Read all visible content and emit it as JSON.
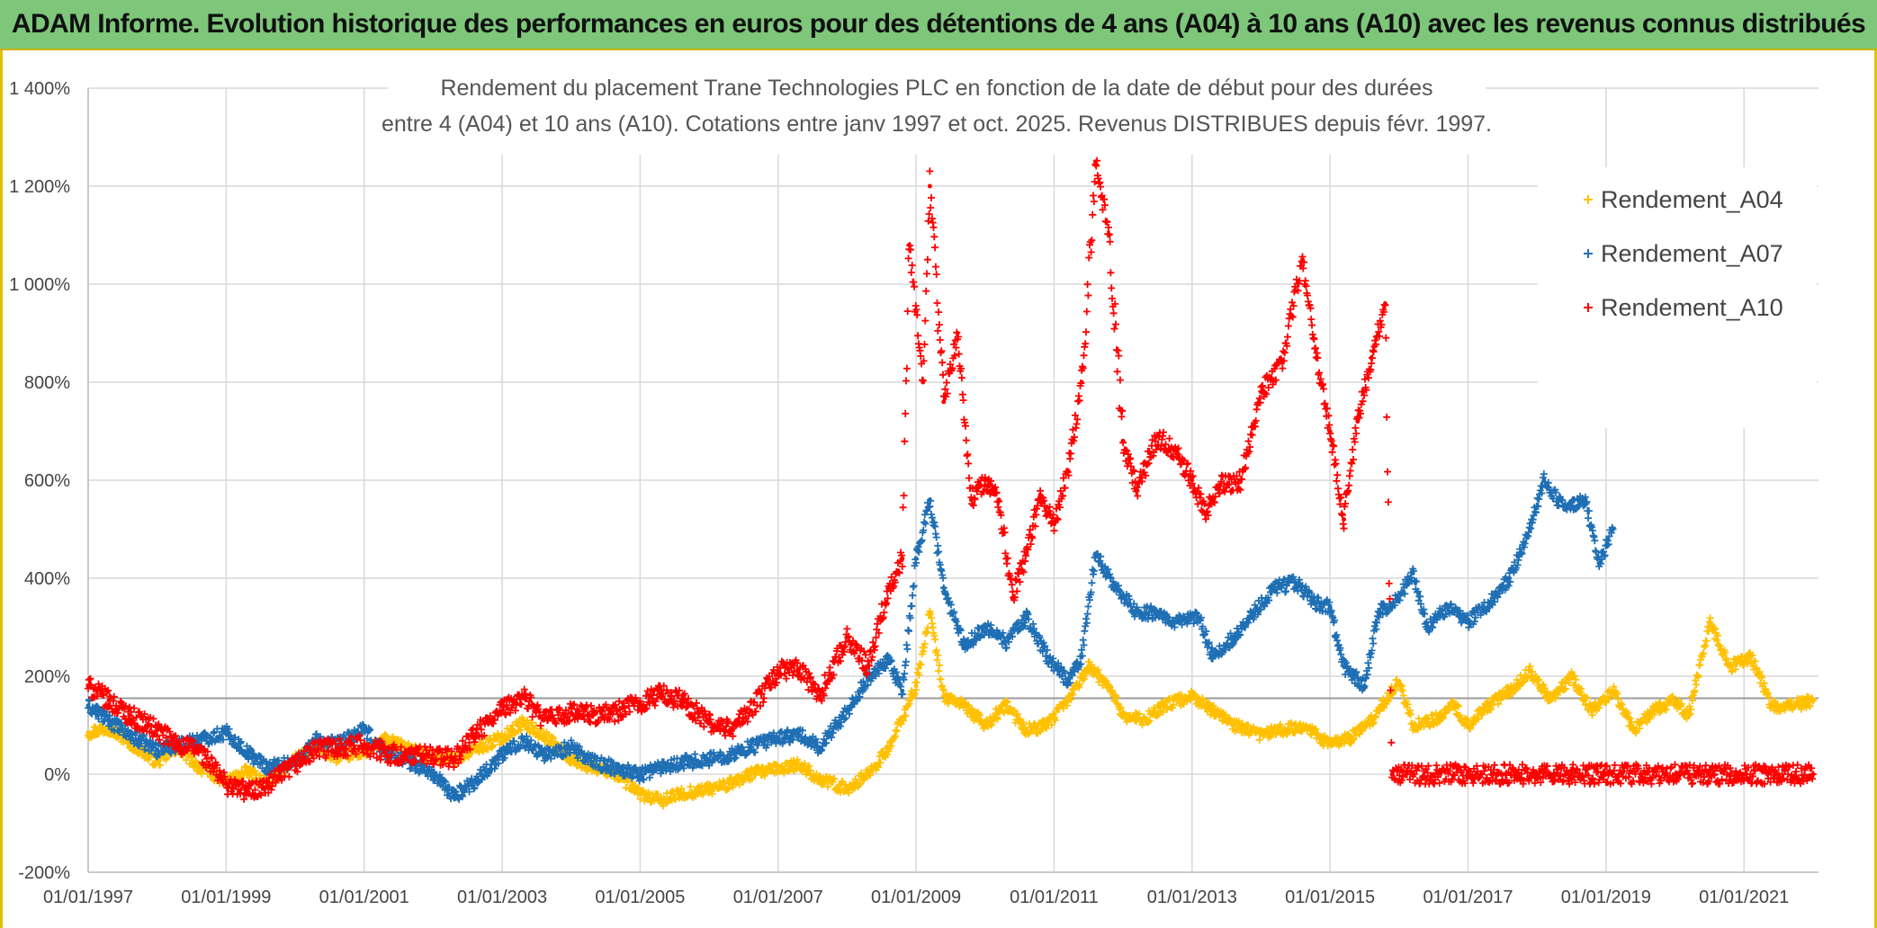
{
  "banner": {
    "title": "ADAM Informe. Evolution historique des performances en euros pour des détentions de 4 ans (A04) à 10 ans (A10) avec les revenus connus distribués"
  },
  "chart_data": {
    "type": "scatter",
    "title_line1": "Rendement du placement Trane Technologies PLC en fonction de la date de début pour des durées",
    "title_line2": "entre 4 (A04) et 10 ans (A10). Cotations entre janv 1997 et oct. 2025. Revenus DISTRIBUES depuis févr. 1997.",
    "xlabel": "",
    "ylabel": "",
    "x_range": [
      "1997-01-01",
      "2022-01-31"
    ],
    "ylim": [
      -200,
      1400
    ],
    "y_ticks": [
      -200,
      0,
      200,
      400,
      600,
      800,
      1000,
      1200,
      1400
    ],
    "y_tick_labels": [
      "-200%",
      "0%",
      "200%",
      "400%",
      "600%",
      "800%",
      "1 000%",
      "1 200%",
      "1 400%"
    ],
    "x_tick_labels": [
      "01/01/1997",
      "01/01/1999",
      "01/01/2001",
      "01/01/2003",
      "01/01/2005",
      "01/01/2007",
      "01/01/2009",
      "01/01/2011",
      "01/01/2013",
      "01/01/2015",
      "01/01/2017",
      "01/01/2019",
      "01/01/2021"
    ],
    "x_tick_years": [
      1997,
      1999,
      2001,
      2003,
      2005,
      2007,
      2009,
      2011,
      2013,
      2015,
      2017,
      2019,
      2021
    ],
    "reference_line_y": 155,
    "grid": true,
    "legend_position": "top-right",
    "series": [
      {
        "name": "Rendement_A04",
        "color": "#ffc000",
        "points": [
          [
            1997.0,
            85
          ],
          [
            1997.3,
            95
          ],
          [
            1997.6,
            65
          ],
          [
            1998.0,
            25
          ],
          [
            1998.3,
            55
          ],
          [
            1998.6,
            15
          ],
          [
            1999.0,
            -15
          ],
          [
            1999.3,
            5
          ],
          [
            1999.6,
            -20
          ],
          [
            2000.0,
            30
          ],
          [
            2000.3,
            55
          ],
          [
            2000.6,
            35
          ],
          [
            2001.0,
            45
          ],
          [
            2001.3,
            70
          ],
          [
            2001.6,
            55
          ],
          [
            2002.0,
            35
          ],
          [
            2002.3,
            30
          ],
          [
            2002.6,
            50
          ],
          [
            2003.0,
            75
          ],
          [
            2003.3,
            105
          ],
          [
            2003.6,
            80
          ],
          [
            2004.0,
            30
          ],
          [
            2004.3,
            15
          ],
          [
            2004.6,
            5
          ],
          [
            2005.0,
            -40
          ],
          [
            2005.3,
            -55
          ],
          [
            2005.6,
            -40
          ],
          [
            2006.0,
            -30
          ],
          [
            2006.3,
            -20
          ],
          [
            2006.6,
            0
          ],
          [
            2007.0,
            10
          ],
          [
            2007.3,
            20
          ],
          [
            2007.6,
            -10
          ],
          [
            2008.0,
            -30
          ],
          [
            2008.3,
            0
          ],
          [
            2008.6,
            50
          ],
          [
            2009.0,
            180
          ],
          [
            2009.2,
            330
          ],
          [
            2009.4,
            160
          ],
          [
            2009.7,
            140
          ],
          [
            2010.0,
            100
          ],
          [
            2010.3,
            140
          ],
          [
            2010.6,
            90
          ],
          [
            2010.9,
            100
          ],
          [
            2011.2,
            150
          ],
          [
            2011.5,
            220
          ],
          [
            2011.8,
            180
          ],
          [
            2012.0,
            120
          ],
          [
            2012.3,
            110
          ],
          [
            2012.6,
            140
          ],
          [
            2013.0,
            160
          ],
          [
            2013.3,
            130
          ],
          [
            2013.6,
            100
          ],
          [
            2014.0,
            80
          ],
          [
            2014.3,
            90
          ],
          [
            2014.6,
            100
          ],
          [
            2015.0,
            60
          ],
          [
            2015.3,
            75
          ],
          [
            2015.6,
            110
          ],
          [
            2016.0,
            190
          ],
          [
            2016.2,
            100
          ],
          [
            2016.5,
            110
          ],
          [
            2016.8,
            140
          ],
          [
            2017.0,
            100
          ],
          [
            2017.3,
            140
          ],
          [
            2017.6,
            170
          ],
          [
            2017.9,
            210
          ],
          [
            2018.2,
            150
          ],
          [
            2018.5,
            200
          ],
          [
            2018.8,
            130
          ],
          [
            2019.1,
            170
          ],
          [
            2019.4,
            90
          ],
          [
            2019.7,
            130
          ],
          [
            2020.0,
            150
          ],
          [
            2020.2,
            120
          ],
          [
            2020.5,
            310
          ],
          [
            2020.8,
            220
          ],
          [
            2021.1,
            240
          ],
          [
            2021.4,
            140
          ],
          [
            2021.7,
            140
          ],
          [
            2022.0,
            150
          ]
        ]
      },
      {
        "name": "Rendement_A07",
        "color": "#1f6fb5",
        "points": [
          [
            1997.0,
            140
          ],
          [
            1997.3,
            110
          ],
          [
            1997.6,
            80
          ],
          [
            1998.0,
            50
          ],
          [
            1998.3,
            60
          ],
          [
            1998.6,
            70
          ],
          [
            1999.0,
            85
          ],
          [
            1999.3,
            45
          ],
          [
            1999.6,
            15
          ],
          [
            2000.0,
            25
          ],
          [
            2000.3,
            70
          ],
          [
            2000.6,
            60
          ],
          [
            2001.0,
            90
          ],
          [
            2001.3,
            45
          ],
          [
            2001.6,
            30
          ],
          [
            2002.0,
            0
          ],
          [
            2002.3,
            -45
          ],
          [
            2002.6,
            -15
          ],
          [
            2003.0,
            40
          ],
          [
            2003.3,
            70
          ],
          [
            2003.6,
            40
          ],
          [
            2004.0,
            55
          ],
          [
            2004.3,
            25
          ],
          [
            2004.6,
            15
          ],
          [
            2005.0,
            0
          ],
          [
            2005.3,
            15
          ],
          [
            2005.6,
            25
          ],
          [
            2006.0,
            30
          ],
          [
            2006.3,
            40
          ],
          [
            2006.6,
            55
          ],
          [
            2007.0,
            75
          ],
          [
            2007.3,
            80
          ],
          [
            2007.6,
            55
          ],
          [
            2008.0,
            130
          ],
          [
            2008.3,
            195
          ],
          [
            2008.6,
            230
          ],
          [
            2008.8,
            170
          ],
          [
            2009.0,
            440
          ],
          [
            2009.2,
            560
          ],
          [
            2009.4,
            380
          ],
          [
            2009.7,
            260
          ],
          [
            2010.0,
            300
          ],
          [
            2010.3,
            270
          ],
          [
            2010.6,
            320
          ],
          [
            2010.9,
            240
          ],
          [
            2011.2,
            190
          ],
          [
            2011.4,
            240
          ],
          [
            2011.6,
            450
          ],
          [
            2011.9,
            380
          ],
          [
            2012.2,
            330
          ],
          [
            2012.5,
            330
          ],
          [
            2012.8,
            310
          ],
          [
            2013.1,
            320
          ],
          [
            2013.3,
            240
          ],
          [
            2013.6,
            280
          ],
          [
            2013.9,
            330
          ],
          [
            2014.2,
            380
          ],
          [
            2014.5,
            390
          ],
          [
            2014.8,
            350
          ],
          [
            2015.0,
            340
          ],
          [
            2015.2,
            220
          ],
          [
            2015.5,
            180
          ],
          [
            2015.7,
            330
          ],
          [
            2016.0,
            360
          ],
          [
            2016.2,
            410
          ],
          [
            2016.4,
            300
          ],
          [
            2016.7,
            340
          ],
          [
            2017.0,
            310
          ],
          [
            2017.3,
            350
          ],
          [
            2017.6,
            400
          ],
          [
            2017.9,
            500
          ],
          [
            2018.1,
            600
          ],
          [
            2018.4,
            540
          ],
          [
            2018.7,
            560
          ],
          [
            2018.9,
            430
          ],
          [
            2019.1,
            500
          ]
        ]
      },
      {
        "name": "Rendement_A10",
        "color": "#ff0000",
        "points": [
          [
            1997.0,
            180
          ],
          [
            1997.3,
            150
          ],
          [
            1997.6,
            120
          ],
          [
            1998.0,
            90
          ],
          [
            1998.3,
            60
          ],
          [
            1998.6,
            50
          ],
          [
            1999.0,
            -20
          ],
          [
            1999.3,
            -35
          ],
          [
            1999.6,
            -25
          ],
          [
            2000.0,
            20
          ],
          [
            2000.3,
            50
          ],
          [
            2000.6,
            55
          ],
          [
            2001.0,
            60
          ],
          [
            2001.3,
            45
          ],
          [
            2001.6,
            35
          ],
          [
            2002.0,
            40
          ],
          [
            2002.3,
            30
          ],
          [
            2002.6,
            80
          ],
          [
            2003.0,
            130
          ],
          [
            2003.3,
            160
          ],
          [
            2003.6,
            110
          ],
          [
            2004.0,
            125
          ],
          [
            2004.3,
            120
          ],
          [
            2004.6,
            125
          ],
          [
            2005.0,
            145
          ],
          [
            2005.3,
            165
          ],
          [
            2005.6,
            150
          ],
          [
            2006.0,
            105
          ],
          [
            2006.3,
            90
          ],
          [
            2006.6,
            130
          ],
          [
            2007.0,
            210
          ],
          [
            2007.3,
            215
          ],
          [
            2007.6,
            160
          ],
          [
            2008.0,
            280
          ],
          [
            2008.3,
            220
          ],
          [
            2008.6,
            380
          ],
          [
            2008.8,
            440
          ],
          [
            2008.9,
            1080
          ],
          [
            2009.1,
            800
          ],
          [
            2009.2,
            1200
          ],
          [
            2009.4,
            760
          ],
          [
            2009.6,
            900
          ],
          [
            2009.8,
            560
          ],
          [
            2010.0,
            600
          ],
          [
            2010.2,
            560
          ],
          [
            2010.4,
            360
          ],
          [
            2010.6,
            450
          ],
          [
            2010.8,
            570
          ],
          [
            2011.0,
            510
          ],
          [
            2011.2,
            620
          ],
          [
            2011.4,
            800
          ],
          [
            2011.6,
            1250
          ],
          [
            2011.8,
            1100
          ],
          [
            2012.0,
            680
          ],
          [
            2012.2,
            580
          ],
          [
            2012.5,
            690
          ],
          [
            2012.8,
            650
          ],
          [
            2013.0,
            600
          ],
          [
            2013.2,
            530
          ],
          [
            2013.4,
            590
          ],
          [
            2013.7,
            600
          ],
          [
            2014.0,
            780
          ],
          [
            2014.3,
            840
          ],
          [
            2014.6,
            1050
          ],
          [
            2014.8,
            850
          ],
          [
            2015.0,
            700
          ],
          [
            2015.2,
            520
          ],
          [
            2015.4,
            720
          ],
          [
            2015.6,
            850
          ],
          [
            2015.8,
            960
          ],
          [
            2015.9,
            0
          ],
          [
            2016.5,
            0
          ],
          [
            2017.0,
            0
          ],
          [
            2017.5,
            0
          ],
          [
            2018.0,
            0
          ],
          [
            2018.5,
            0
          ],
          [
            2019.0,
            0
          ],
          [
            2019.5,
            0
          ],
          [
            2020.0,
            0
          ],
          [
            2020.5,
            0
          ],
          [
            2021.0,
            0
          ],
          [
            2021.5,
            0
          ],
          [
            2022.0,
            0
          ]
        ]
      }
    ]
  }
}
